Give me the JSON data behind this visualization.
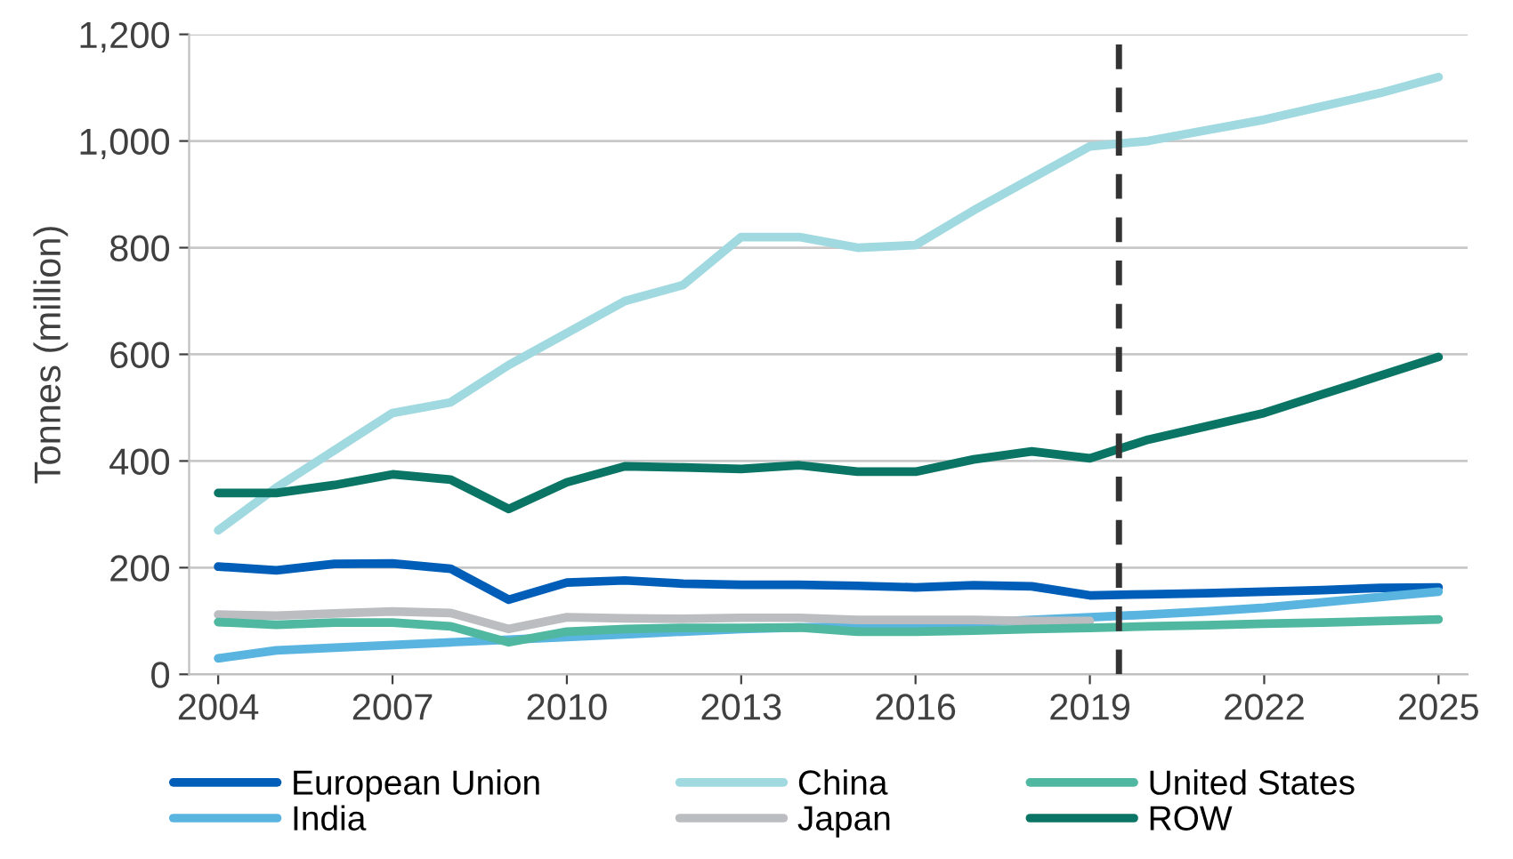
{
  "chart_data": {
    "type": "line",
    "ylabel": "Tonnes (million)",
    "x": [
      2004,
      2005,
      2006,
      2007,
      2008,
      2009,
      2010,
      2011,
      2012,
      2013,
      2014,
      2015,
      2016,
      2017,
      2018,
      2019,
      2020,
      2021,
      2022,
      2023,
      2024,
      2025
    ],
    "xlim": [
      2003.5,
      2025.5
    ],
    "xticks": [
      2004,
      2007,
      2010,
      2013,
      2016,
      2019,
      2022,
      2025
    ],
    "ylim": [
      0,
      1200
    ],
    "yticks": [
      {
        "value": 0,
        "label": "0"
      },
      {
        "value": 200,
        "label": "200"
      },
      {
        "value": 400,
        "label": "400"
      },
      {
        "value": 600,
        "label": "600"
      },
      {
        "value": 800,
        "label": "800"
      },
      {
        "value": 1000,
        "label": "1,000"
      },
      {
        "value": 1200,
        "label": "1,200"
      }
    ],
    "grid": "y",
    "legend": "bottom",
    "line_style": "solid",
    "marker": "none",
    "ref_lines": [
      {
        "axis": "x",
        "value": 2019.5,
        "color": "#333333",
        "line_style": "dashed"
      }
    ],
    "series": [
      {
        "name": "European Union",
        "color": "#005eb8",
        "values": [
          202,
          195,
          207,
          208,
          198,
          140,
          172,
          176,
          170,
          168,
          168,
          166,
          163,
          167,
          165,
          148,
          150,
          152,
          155,
          158,
          162,
          163
        ]
      },
      {
        "name": "India",
        "color": "#5ab4e0",
        "values": [
          30,
          45,
          50,
          55,
          60,
          65,
          70,
          75,
          80,
          85,
          88,
          90,
          93,
          97,
          102,
          107,
          112,
          118,
          125,
          135,
          145,
          155
        ]
      },
      {
        "name": "China",
        "color": "#a0d9e0",
        "values": [
          270,
          350,
          420,
          490,
          510,
          580,
          640,
          700,
          730,
          820,
          820,
          800,
          805,
          870,
          930,
          990,
          1000,
          1020,
          1040,
          1065,
          1090,
          1120
        ]
      },
      {
        "name": "Japan",
        "color": "#bbbdc0",
        "values": [
          112,
          110,
          114,
          118,
          115,
          85,
          107,
          105,
          104,
          106,
          106,
          102,
          102,
          102,
          100,
          100,
          null,
          null,
          null,
          null,
          null,
          null
        ]
      },
      {
        "name": "United States",
        "color": "#50b8a0",
        "values": [
          98,
          93,
          97,
          97,
          90,
          60,
          80,
          85,
          87,
          87,
          88,
          80,
          80,
          82,
          85,
          87,
          90,
          92,
          95,
          97,
          100,
          103
        ]
      },
      {
        "name": "ROW",
        "color": "#0b7565",
        "values": [
          340,
          340,
          355,
          375,
          365,
          310,
          360,
          390,
          388,
          385,
          392,
          380,
          380,
          403,
          418,
          405,
          440,
          465,
          490,
          525,
          560,
          595
        ]
      }
    ]
  }
}
